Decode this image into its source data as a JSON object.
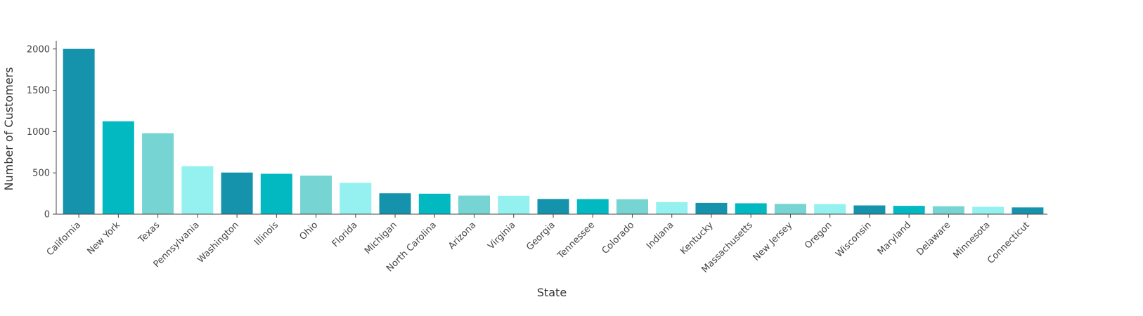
{
  "chart_data": {
    "type": "bar",
    "xlabel": "State",
    "ylabel": "Number of Customers",
    "ylim": [
      0,
      2100
    ],
    "yticks": [
      0,
      500,
      1000,
      1500,
      2000
    ],
    "grid": false,
    "legend": "none",
    "colors": [
      "#1593ad",
      "#02b8c1",
      "#76d5d3",
      "#94f1f0"
    ],
    "categories": [
      "California",
      "New York",
      "Texas",
      "Pennsylvania",
      "Washington",
      "Illinois",
      "Ohio",
      "Florida",
      "Michigan",
      "North Carolina",
      "Arizona",
      "Virginia",
      "Georgia",
      "Tennessee",
      "Colorado",
      "Indiana",
      "Kentucky",
      "Massachusetts",
      "New Jersey",
      "Oregon",
      "Wisconsin",
      "Maryland",
      "Delaware",
      "Minnesota",
      "Connecticut"
    ],
    "values": [
      2001,
      1125,
      980,
      581,
      504,
      489,
      467,
      380,
      253,
      248,
      225,
      223,
      184,
      183,
      181,
      146,
      137,
      132,
      125,
      122,
      106,
      101,
      96,
      89,
      82
    ]
  }
}
